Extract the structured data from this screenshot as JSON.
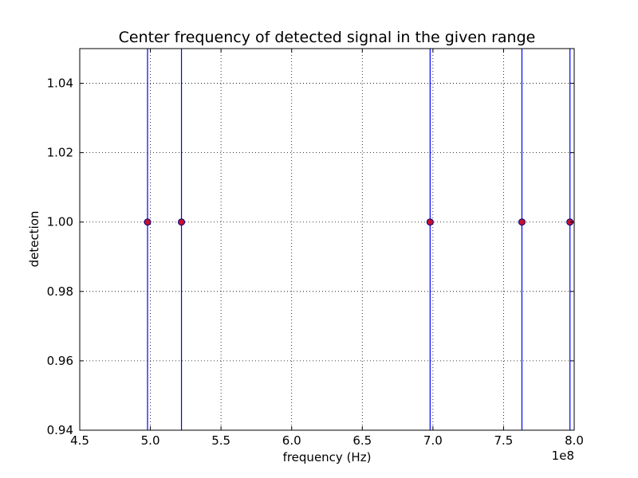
{
  "chart_data": {
    "type": "scatter",
    "title": "Center frequency of detected signal in the given range",
    "xlabel": "frequency (Hz)",
    "ylabel": "detection",
    "x_offset_label": "1e8",
    "xlim": [
      4.5,
      8.0
    ],
    "ylim": [
      0.94,
      1.05
    ],
    "x_ticks": [
      4.5,
      5.0,
      5.5,
      6.0,
      6.5,
      7.0,
      7.5,
      8.0
    ],
    "x_tick_labels": [
      "4.5",
      "5.0",
      "5.5",
      "6.0",
      "6.5",
      "7.0",
      "7.5",
      "8.0"
    ],
    "y_ticks": [
      0.94,
      0.96,
      0.98,
      1.0,
      1.02,
      1.04
    ],
    "y_tick_labels": [
      "0.94",
      "0.96",
      "0.98",
      "1.00",
      "1.02",
      "1.04"
    ],
    "grid": true,
    "series": [
      {
        "x": [
          4.98,
          5.22,
          6.98,
          7.63,
          7.97
        ],
        "y": [
          1.0,
          1.0,
          1.0,
          1.0,
          1.0
        ],
        "marker_color": "#c8102e",
        "marker_edge_color": "#000080"
      }
    ],
    "vlines": {
      "x": [
        4.98,
        5.22,
        6.98,
        7.63,
        7.97
      ],
      "color": "#0000ff"
    }
  }
}
